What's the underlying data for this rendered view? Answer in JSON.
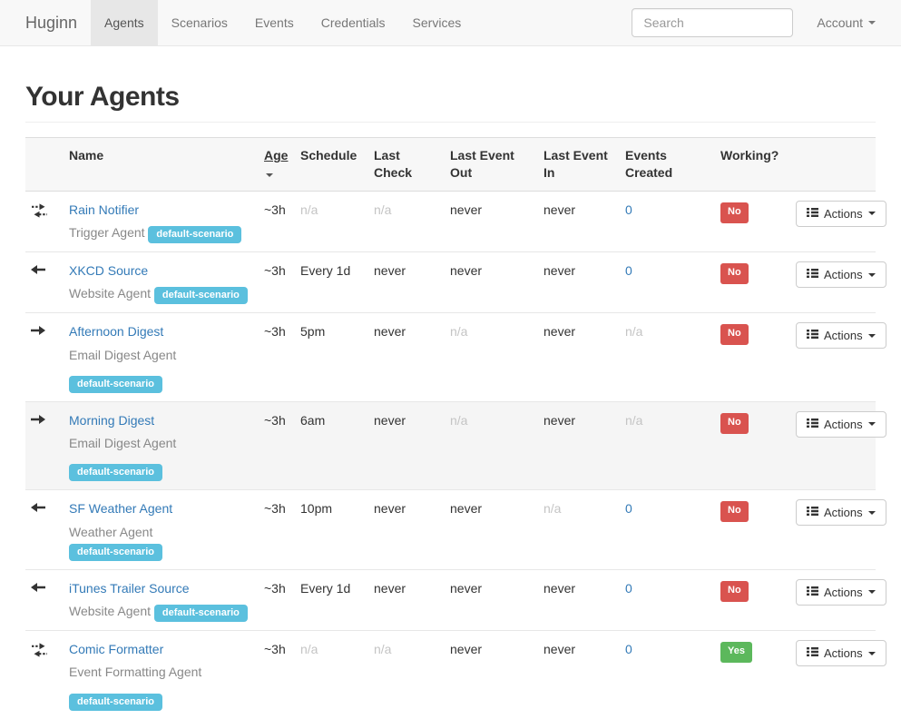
{
  "navbar": {
    "brand": "Huginn",
    "items": [
      {
        "label": "Agents",
        "active": true
      },
      {
        "label": "Scenarios",
        "active": false
      },
      {
        "label": "Events",
        "active": false
      },
      {
        "label": "Credentials",
        "active": false
      },
      {
        "label": "Services",
        "active": false
      }
    ],
    "search": {
      "placeholder": "Search"
    },
    "account": {
      "label": "Account"
    }
  },
  "page": {
    "title": "Your Agents"
  },
  "table": {
    "headers": {
      "name": "Name",
      "age": "Age",
      "schedule": "Schedule",
      "last_check": "Last Check",
      "last_event_out": "Last Event Out",
      "last_event_in": "Last Event In",
      "events_created": "Events Created",
      "working": "Working?"
    },
    "actions_label": "Actions",
    "rows": [
      {
        "direction": "both",
        "icon": "bidirectional-arrows-icon",
        "name": "Rain Notifier",
        "agent_type": "Trigger Agent",
        "scenario": "default-scenario",
        "age": "~3h",
        "schedule": "n/a",
        "last_check": "n/a",
        "last_event_out": "never",
        "last_event_in": "never",
        "events_created": "0",
        "working": "No"
      },
      {
        "direction": "left",
        "icon": "left-arrow-icon",
        "name": "XKCD Source",
        "agent_type": "Website Agent",
        "scenario": "default-scenario",
        "age": "~3h",
        "schedule": "Every 1d",
        "last_check": "never",
        "last_event_out": "never",
        "last_event_in": "never",
        "events_created": "0",
        "working": "No"
      },
      {
        "direction": "right",
        "icon": "right-arrow-icon",
        "name": "Afternoon Digest",
        "agent_type": "Email Digest Agent",
        "scenario": "default-scenario",
        "age": "~3h",
        "schedule": "5pm",
        "last_check": "never",
        "last_event_out": "n/a",
        "last_event_in": "never",
        "events_created": "n/a",
        "working": "No"
      },
      {
        "direction": "right",
        "icon": "right-arrow-icon",
        "name": "Morning Digest",
        "agent_type": "Email Digest Agent",
        "scenario": "default-scenario",
        "age": "~3h",
        "schedule": "6am",
        "last_check": "never",
        "last_event_out": "n/a",
        "last_event_in": "never",
        "events_created": "n/a",
        "working": "No"
      },
      {
        "direction": "left",
        "icon": "left-arrow-icon",
        "name": "SF Weather Agent",
        "agent_type": "Weather Agent",
        "scenario": "default-scenario",
        "age": "~3h",
        "schedule": "10pm",
        "last_check": "never",
        "last_event_out": "never",
        "last_event_in": "n/a",
        "events_created": "0",
        "working": "No"
      },
      {
        "direction": "left",
        "icon": "left-arrow-icon",
        "name": "iTunes Trailer Source",
        "agent_type": "Website Agent",
        "scenario": "default-scenario",
        "age": "~3h",
        "schedule": "Every 1d",
        "last_check": "never",
        "last_event_out": "never",
        "last_event_in": "never",
        "events_created": "0",
        "working": "No"
      },
      {
        "direction": "both",
        "icon": "bidirectional-arrows-icon",
        "name": "Comic Formatter",
        "agent_type": "Event Formatting Agent",
        "scenario": "default-scenario",
        "age": "~3h",
        "schedule": "n/a",
        "last_check": "n/a",
        "last_event_out": "never",
        "last_event_in": "never",
        "events_created": "0",
        "working": "Yes"
      }
    ]
  },
  "colors": {
    "link": "#337ab7",
    "scenario_badge": "#5bc0de",
    "working_no": "#d9534f",
    "working_yes": "#5cb85c",
    "navbar_bg": "#f8f8f8",
    "active_tab_bg": "#e7e7e7",
    "muted_text": "#c4c4c4"
  }
}
